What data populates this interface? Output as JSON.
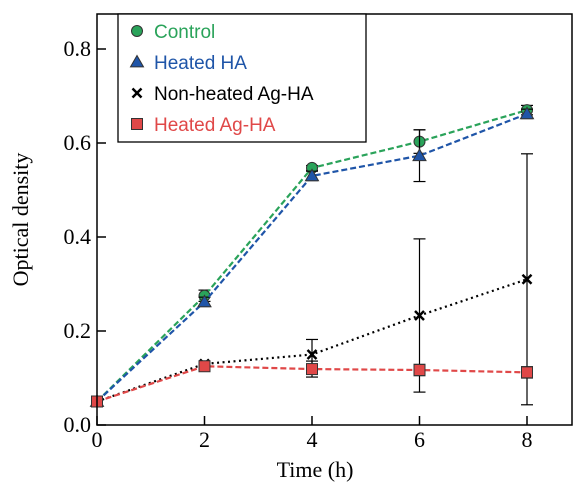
{
  "chart_data": {
    "type": "line",
    "xlabel": "Time (h)",
    "ylabel": "Optical density",
    "xlim": [
      0,
      9
    ],
    "ylim": [
      0,
      0.8
    ],
    "xticks": [
      "0",
      "2",
      "4",
      "6",
      "8"
    ],
    "yticks": [
      "0.0",
      "0.2",
      "0.4",
      "0.6",
      "0.8"
    ],
    "grid": false,
    "legend_position": "top-left",
    "series": [
      {
        "name": "Control",
        "color": "#2aa35a",
        "marker": "circle",
        "line_style": "dashed",
        "x": [
          0,
          2,
          4,
          6,
          8
        ],
        "y": [
          0.05,
          0.275,
          0.547,
          0.603,
          0.67
        ],
        "error": [
          0,
          0.012,
          0.005,
          0.025,
          0.01
        ]
      },
      {
        "name": "Heated HA",
        "color": "#1f55a8",
        "marker": "triangle",
        "line_style": "dashed",
        "x": [
          0,
          2,
          4,
          6,
          8
        ],
        "y": [
          0.05,
          0.262,
          0.53,
          0.573,
          0.662
        ],
        "error": [
          0,
          0.01,
          0.01,
          0.055,
          0.01
        ]
      },
      {
        "name": "Non-heated Ag-HA",
        "color": "#000000",
        "marker": "x",
        "line_style": "dotted",
        "x": [
          0,
          2,
          4,
          6,
          8
        ],
        "y": [
          0.05,
          0.13,
          0.15,
          0.233,
          0.31
        ],
        "error": [
          0,
          0.005,
          0.032,
          0.163,
          0.267
        ]
      },
      {
        "name": "Heated Ag-HA",
        "color": "#e04848",
        "marker": "square",
        "line_style": "dashed",
        "x": [
          0,
          2,
          4,
          6,
          8
        ],
        "y": [
          0.05,
          0.125,
          0.119,
          0.117,
          0.112
        ],
        "error": [
          0,
          0.005,
          0.017,
          0.012,
          0.012
        ]
      }
    ]
  }
}
